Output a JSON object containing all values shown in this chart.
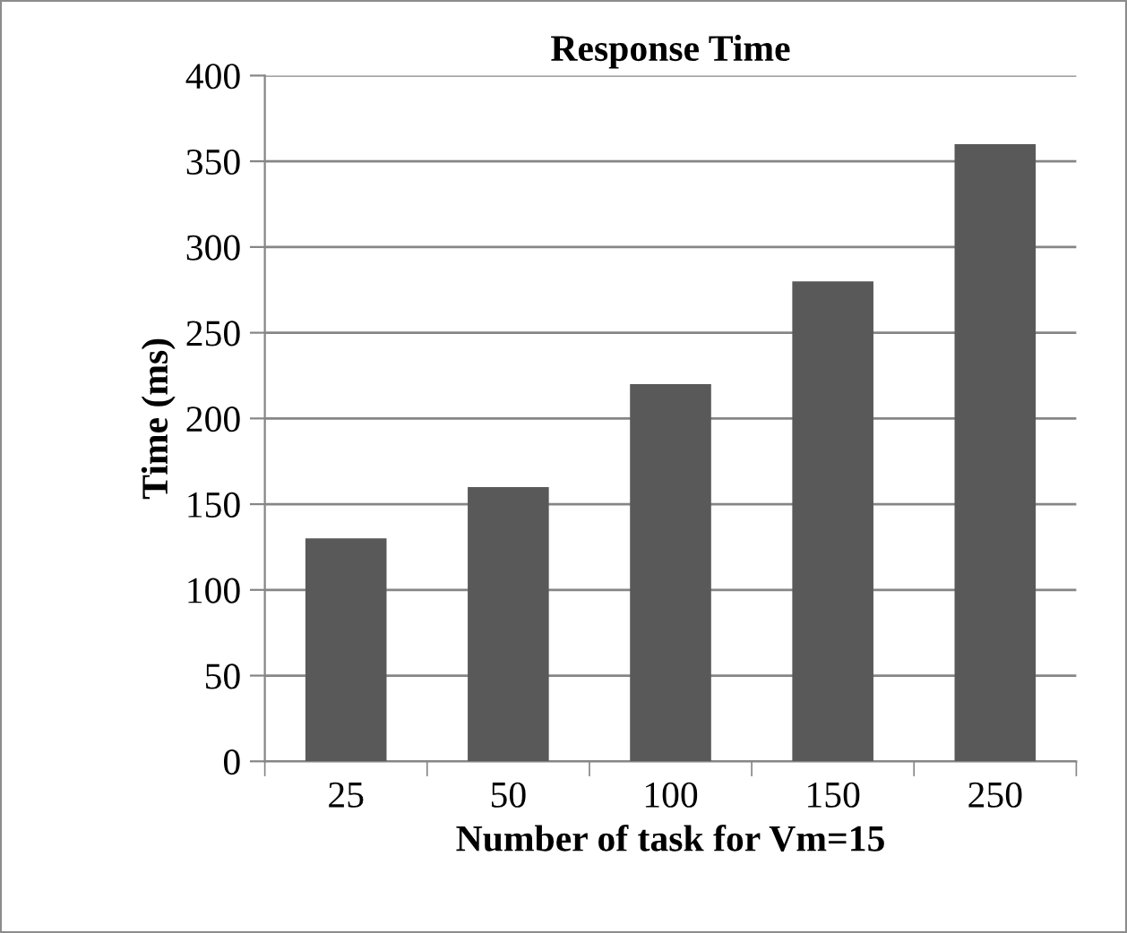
{
  "chart_data": {
    "type": "bar",
    "title": "Response Time",
    "xlabel": "Number of task for Vm=15",
    "ylabel": "Time (ms)",
    "categories": [
      "25",
      "50",
      "100",
      "150",
      "250"
    ],
    "values": [
      130,
      160,
      220,
      280,
      360
    ],
    "color": "#595959",
    "ylim": [
      0,
      400
    ],
    "yticks": [
      0,
      50,
      100,
      150,
      200,
      250,
      300,
      350,
      400
    ],
    "grid": "y",
    "legend": false
  }
}
